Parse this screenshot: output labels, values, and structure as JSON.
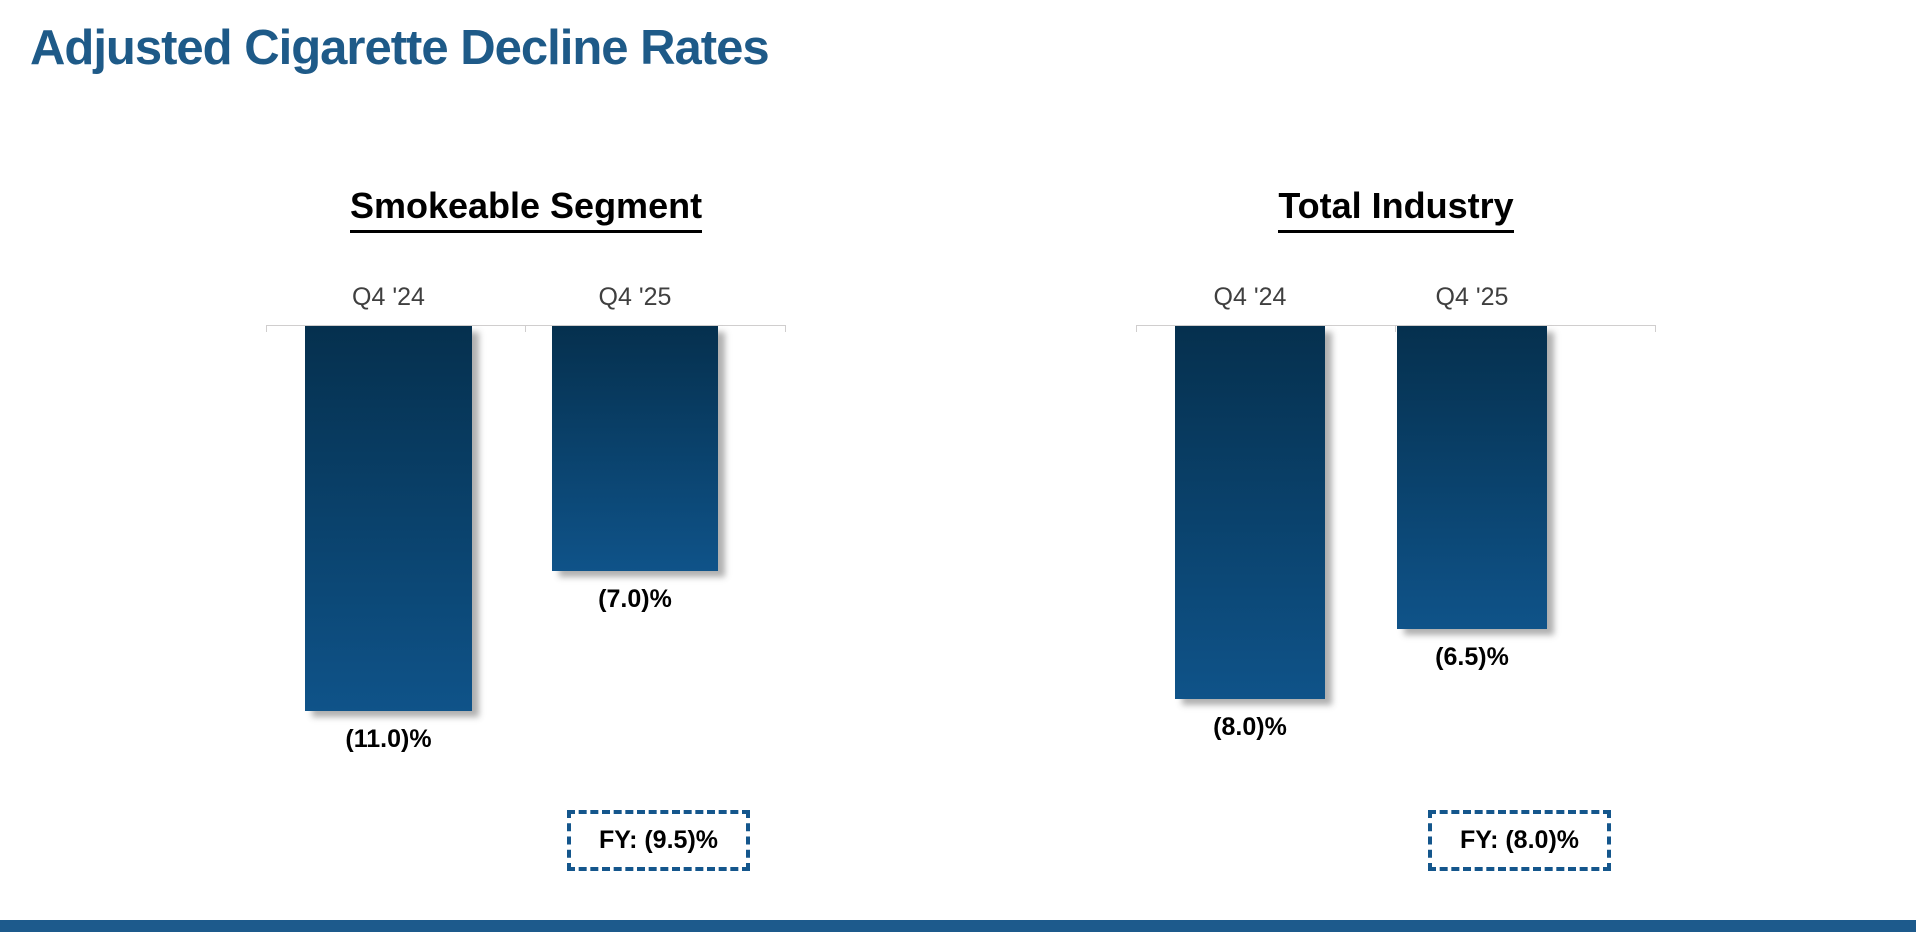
{
  "slide": {
    "title": "Adjusted Cigarette Decline Rates"
  },
  "style": {
    "title_color": "#1e5a88",
    "annotation_border_color": "#14568c",
    "footer_bar_color": "#1d5a8c",
    "axis_color": "#d0cece",
    "category_label_color": "#3f3f3f"
  },
  "chart_data": [
    {
      "type": "bar",
      "title": "Smokeable Segment",
      "categories": [
        "Q4 '24",
        "Q4 '25"
      ],
      "values": [
        -11.0,
        -7.0
      ],
      "value_labels": [
        "(11.0)%",
        "(7.0)%"
      ],
      "annotation": "FY: (9.5)%",
      "xlabel": "",
      "ylabel": "",
      "ylim": [
        -12,
        0
      ],
      "grid": false,
      "legend": "none",
      "bar_gradient_top": "#05304e",
      "bar_gradient_bottom": "#0f5389"
    },
    {
      "type": "bar",
      "title": "Total Industry",
      "categories": [
        "Q4 '24",
        "Q4 '25"
      ],
      "values": [
        -8.0,
        -6.5
      ],
      "value_labels": [
        "(8.0)%",
        "(6.5)%"
      ],
      "annotation": "FY: (8.0)%",
      "xlabel": "",
      "ylabel": "",
      "ylim": [
        -9,
        0
      ],
      "grid": false,
      "legend": "none",
      "bar_gradient_top": "#05304e",
      "bar_gradient_bottom": "#0f5389"
    }
  ]
}
